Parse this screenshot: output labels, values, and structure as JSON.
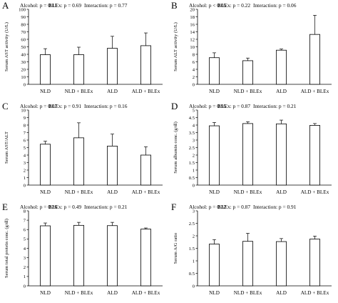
{
  "figure": {
    "panels": [
      {
        "letter": "A",
        "stats": [
          "Alcohol: p = 0.11",
          "BLEx: p = 0.69",
          "Interaction: p = 0.77"
        ]
      },
      {
        "letter": "B",
        "stats": [
          "Alcohol: p < 0.05",
          "BLEx: p = 0.22",
          "Interaction: p = 0.06"
        ]
      },
      {
        "letter": "C",
        "stats": [
          "Alcohol: p = 0.07",
          "BLEx: p = 0.91",
          "Interaction: p = 0.16"
        ]
      },
      {
        "letter": "D",
        "stats": [
          "Alcohol: p = 0.95",
          "BLEx: p = 0.87",
          "Interaction: p = 0.21"
        ]
      },
      {
        "letter": "E",
        "stats": [
          "Alcohol: p = 0.26",
          "BLEx: p = 0.49",
          "Interaction: p = 0.21"
        ]
      },
      {
        "letter": "F",
        "stats": [
          "Alcohol: p = 0.32",
          "BLEx: p = 0.87",
          "Interaction: p = 0.91"
        ]
      }
    ]
  },
  "chart_data": [
    {
      "type": "bar",
      "panel": "A",
      "categories": [
        "NLD",
        "NLD + BLEx",
        "ALD",
        "ALD + BLEx"
      ],
      "values": [
        39.5,
        39.5,
        48,
        51.5
      ],
      "errors": [
        8,
        10,
        16,
        17
      ],
      "ylabel": "Serum AST activity (U/L)",
      "ylim": [
        0,
        100
      ],
      "yticks": [
        "0",
        "10",
        "20",
        "30",
        "40",
        "50",
        "60",
        "70",
        "80",
        "90",
        "100"
      ],
      "grid": false,
      "bar_color": "#ffffff",
      "edge_color": "#000000"
    },
    {
      "type": "bar",
      "panel": "B",
      "categories": [
        "NLD",
        "NLD + BLEx",
        "ALD",
        "ALD + BLEx"
      ],
      "values": [
        7.1,
        6.3,
        9.1,
        13.3
      ],
      "errors": [
        1.3,
        0.7,
        0.3,
        5.1
      ],
      "ylabel": "Serum ALT activity (U/L)",
      "ylim": [
        0,
        20
      ],
      "yticks": [
        "0",
        "2",
        "4",
        "6",
        "8",
        "10",
        "12",
        "14",
        "16",
        "18",
        "20"
      ],
      "grid": false,
      "bar_color": "#ffffff",
      "edge_color": "#000000"
    },
    {
      "type": "bar",
      "panel": "C",
      "categories": [
        "NLD",
        "NLD + BLEx",
        "ALD",
        "ALD + BLEx"
      ],
      "values": [
        5.45,
        6.3,
        5.2,
        4.0
      ],
      "errors": [
        0.4,
        2.0,
        1.6,
        1.1
      ],
      "ylabel": "Serum AST/ALT",
      "ylim": [
        0,
        10
      ],
      "yticks": [
        "0",
        "1",
        "2",
        "3",
        "4",
        "5",
        "6",
        "7",
        "8",
        "9",
        "10"
      ],
      "grid": false,
      "bar_color": "#ffffff",
      "edge_color": "#000000"
    },
    {
      "type": "bar",
      "panel": "D",
      "categories": [
        "NLD",
        "NLD + BLEx",
        "ALD",
        "ALD + BLEx"
      ],
      "values": [
        3.95,
        4.1,
        4.08,
        3.98
      ],
      "errors": [
        0.22,
        0.12,
        0.25,
        0.12
      ],
      "ylabel": "Serum albumin conc. (g/dl)",
      "ylim": [
        0,
        5
      ],
      "yticks": [
        "0",
        "0.5",
        "1",
        "1.5",
        "2",
        "2.5",
        "3",
        "3.5",
        "4",
        "4.5",
        "5"
      ],
      "grid": false,
      "bar_color": "#ffffff",
      "edge_color": "#000000"
    },
    {
      "type": "bar",
      "panel": "E",
      "categories": [
        "NLD",
        "NLD + BLEx",
        "ALD",
        "ALD + BLEx"
      ],
      "values": [
        6.4,
        6.45,
        6.42,
        6.05
      ],
      "errors": [
        0.3,
        0.32,
        0.35,
        0.12
      ],
      "ylabel": "Serum total protein conc. (g/dl)",
      "ylim": [
        0,
        8
      ],
      "yticks": [
        "0",
        "1",
        "2",
        "3",
        "4",
        "5",
        "6",
        "7",
        "8"
      ],
      "grid": false,
      "bar_color": "#ffffff",
      "edge_color": "#000000"
    },
    {
      "type": "bar",
      "panel": "F",
      "categories": [
        "NLD",
        "NLD + BLEx",
        "ALD",
        "ALD + BLEx"
      ],
      "values": [
        1.67,
        1.78,
        1.77,
        1.87
      ],
      "errors": [
        0.18,
        0.32,
        0.12,
        0.12
      ],
      "ylabel": "Serum A/G ratio",
      "ylim": [
        0,
        3
      ],
      "yticks": [
        "0",
        "0.5",
        "1",
        "1.5",
        "2",
        "2.5",
        "3"
      ],
      "grid": false,
      "bar_color": "#ffffff",
      "edge_color": "#000000"
    }
  ]
}
